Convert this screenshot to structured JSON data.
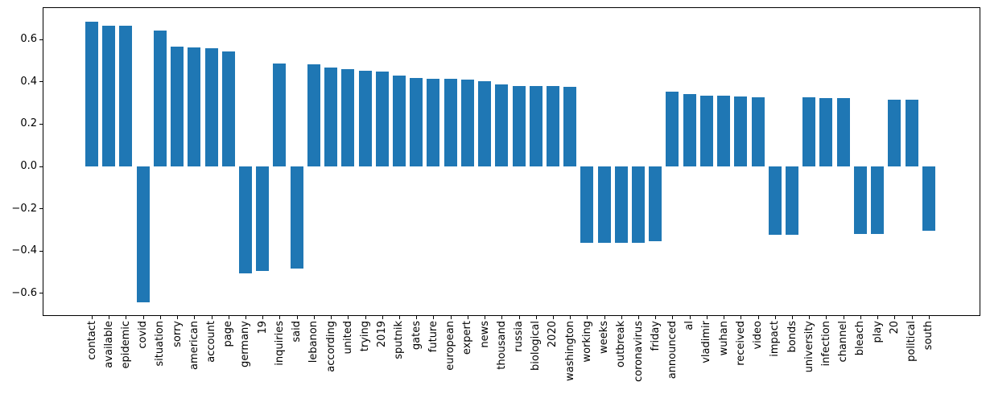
{
  "chart_data": {
    "type": "bar",
    "title": "",
    "xlabel": "",
    "ylabel": "",
    "categories": [
      "contact",
      "available",
      "epidemic",
      "covid",
      "situation",
      "sorry",
      "american",
      "account",
      "page",
      "germany",
      "19",
      "inquiries",
      "said",
      "lebanon",
      "according",
      "united",
      "trying",
      "2019",
      "sputnik",
      "gates",
      "future",
      "european",
      "expert",
      "news",
      "thousand",
      "russia",
      "biological",
      "2020",
      "washington",
      "working",
      "weeks",
      "outbreak",
      "coronavirus",
      "friday",
      "announced",
      "al",
      "vladimir",
      "wuhan",
      "received",
      "video",
      "impact",
      "bonds",
      "university",
      "infection",
      "channel",
      "bleach",
      "play",
      "20",
      "political",
      "south"
    ],
    "values": [
      0.684,
      0.663,
      0.665,
      -0.646,
      0.64,
      0.566,
      0.562,
      0.557,
      0.543,
      -0.51,
      -0.497,
      0.486,
      -0.484,
      0.48,
      0.467,
      0.458,
      0.453,
      0.449,
      0.43,
      0.417,
      0.415,
      0.413,
      0.41,
      0.4,
      0.385,
      0.377,
      0.377,
      0.377,
      0.376,
      -0.365,
      -0.365,
      -0.365,
      -0.363,
      -0.356,
      0.352,
      0.341,
      0.334,
      0.333,
      0.33,
      0.327,
      -0.327,
      -0.327,
      0.324,
      0.322,
      0.32,
      -0.323,
      -0.323,
      0.315,
      0.314,
      -0.307
    ],
    "yticks": [
      0.6,
      0.4,
      0.2,
      0.0,
      -0.2,
      -0.4,
      -0.6
    ],
    "ylim": [
      -0.71,
      0.752
    ],
    "xtick_rotation": 90,
    "grid": false,
    "legend": null,
    "bar_color": "#1f77b4",
    "spine_color": "#000000",
    "background_color": "#ffffff"
  }
}
